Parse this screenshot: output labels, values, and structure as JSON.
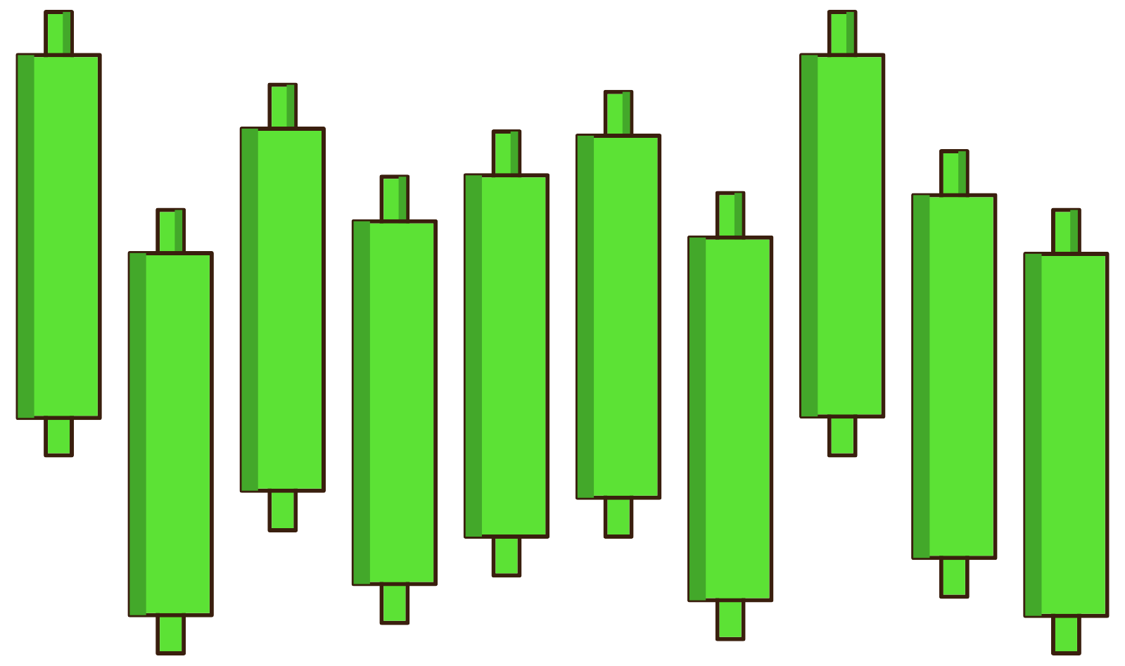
{
  "chart_data": {
    "type": "candlestick",
    "categories": [
      null,
      null,
      null,
      null,
      null,
      null,
      null,
      null,
      null,
      null
    ],
    "open": [
      34.2,
      6.3,
      23.9,
      10.7,
      17.4,
      22.9,
      8.4,
      34.4,
      14.4,
      6.2
    ],
    "close": [
      86.1,
      58.1,
      75.7,
      62.6,
      69.1,
      74.7,
      60.3,
      86.1,
      66.3,
      58.0
    ],
    "high": [
      92.2,
      64.2,
      81.9,
      68.9,
      75.3,
      80.9,
      66.6,
      92.2,
      72.5,
      64.2
    ],
    "low": [
      28.9,
      0.9,
      18.3,
      5.2,
      11.9,
      17.4,
      2.9,
      28.9,
      8.9,
      0.9
    ],
    "color": "#5ce235",
    "ylim": [
      0,
      93
    ],
    "grid": false,
    "tick_labels": false
  }
}
